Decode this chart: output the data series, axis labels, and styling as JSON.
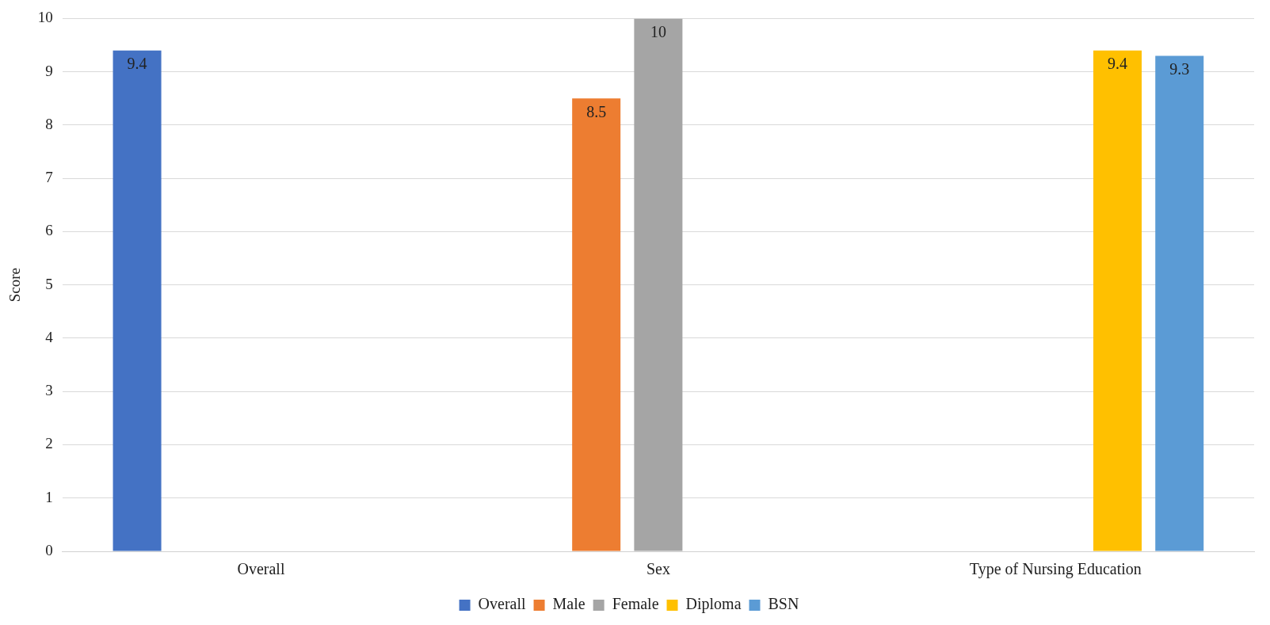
{
  "chart_data": {
    "type": "bar",
    "ylabel": "Score",
    "categories": [
      "Overall",
      "Sex",
      "Type of Nursing Education"
    ],
    "series": [
      {
        "name": "Overall",
        "color": "#4472c4",
        "values": [
          9.4,
          null,
          null
        ]
      },
      {
        "name": "Male",
        "color": "#ed7d31",
        "values": [
          null,
          8.5,
          null
        ]
      },
      {
        "name": "Female",
        "color": "#a5a5a5",
        "values": [
          null,
          10,
          null
        ]
      },
      {
        "name": "Diploma",
        "color": "#ffc000",
        "values": [
          null,
          null,
          9.4
        ]
      },
      {
        "name": "BSN",
        "color": "#5b9bd5",
        "values": [
          null,
          null,
          9.3
        ]
      }
    ],
    "ylim": [
      0,
      10
    ],
    "yticks": [
      0,
      1,
      2,
      3,
      4,
      5,
      6,
      7,
      8,
      9,
      10
    ],
    "grid": "y",
    "legend": "bottom",
    "data_labels": true
  }
}
